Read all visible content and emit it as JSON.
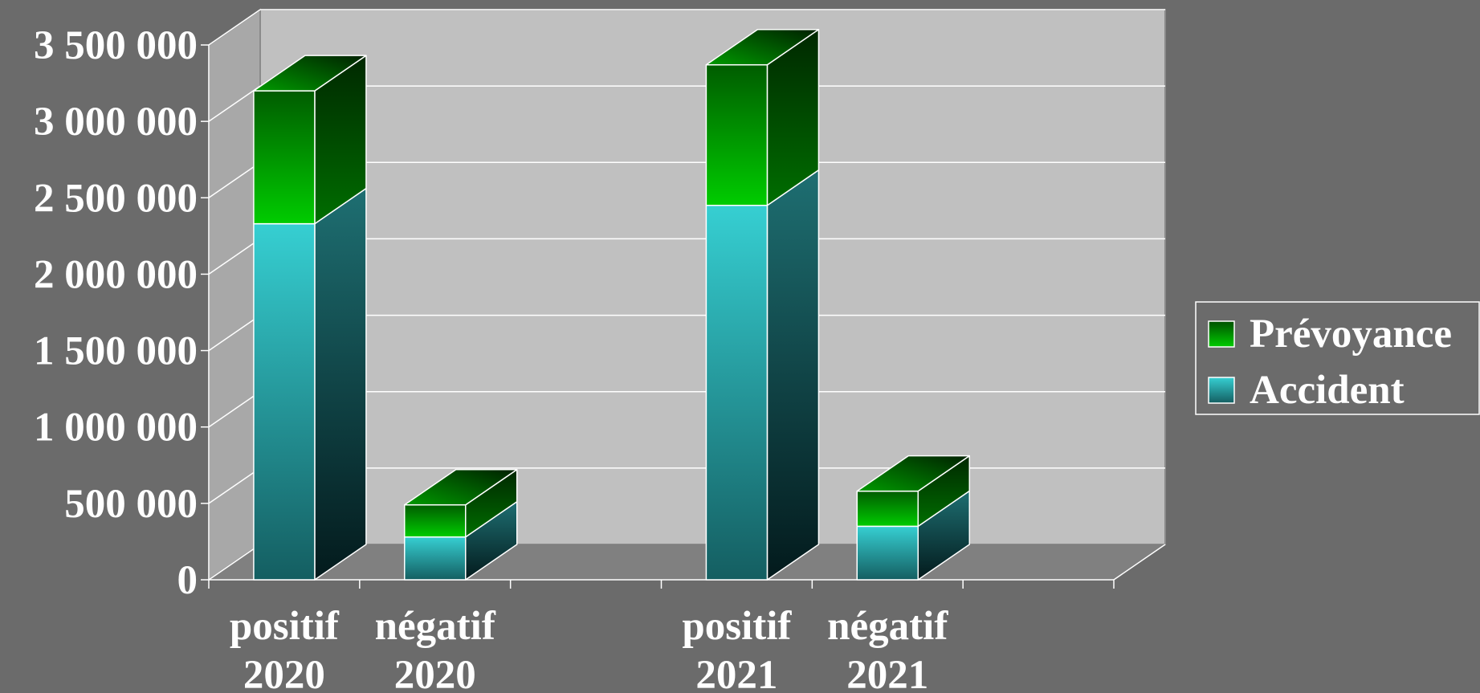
{
  "chart_data": {
    "type": "bar",
    "stacked": true,
    "three_d": true,
    "categories": [
      [
        "positif",
        "2020"
      ],
      [
        "négatif",
        "2020"
      ],
      [
        "",
        ""
      ],
      [
        "positif",
        "2021"
      ],
      [
        "négatif",
        "2021"
      ],
      [
        "",
        ""
      ]
    ],
    "series": [
      {
        "name": "Accident",
        "values": [
          2330000,
          280000,
          null,
          2450000,
          350000,
          null
        ]
      },
      {
        "name": "Prévoyance",
        "values": [
          870000,
          210000,
          null,
          920000,
          230000,
          null
        ]
      }
    ],
    "ylim": [
      0,
      3500000
    ],
    "yticks": [
      "0",
      "500 000",
      "1 000 000",
      "1 500 000",
      "2 000 000",
      "2 500 000",
      "3 000 000",
      "3 500 000"
    ],
    "grid": true,
    "legend": "right",
    "legend_order": [
      "Prévoyance",
      "Accident"
    ],
    "colors": {
      "background": "#6b6b6b",
      "wall": "#c0c0c0",
      "floor": "#808080",
      "accident": "#33c9cc",
      "prevoyance": "#00c000"
    }
  }
}
